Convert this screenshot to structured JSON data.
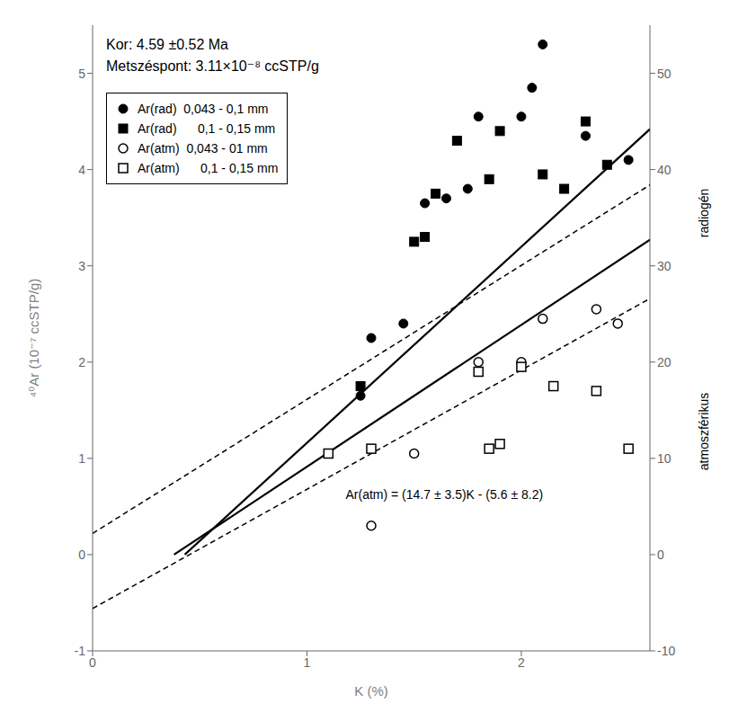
{
  "chart_data": {
    "type": "scatter",
    "xlabel": "K (%)",
    "ylabel": "⁴⁰Ar (10⁻⁷ ccSTP/g)",
    "xlim": [
      0,
      2.6
    ],
    "xticks": [
      0,
      1,
      2
    ],
    "ylim": [
      -1,
      5.5
    ],
    "yticks": [
      -1,
      0,
      1,
      2,
      3,
      4,
      5
    ],
    "y2lim": [
      -10,
      55
    ],
    "y2ticks": [
      -10,
      0,
      10,
      20,
      30,
      40,
      50
    ],
    "grid": false,
    "legend": "upper left",
    "annotations": [
      "Kor: 4.59 ±0.52 Ma\nMetszéspont: 3.11×10⁻⁸ ccSTP/g",
      "Ar(atm) = (14.7 ± 3.5)K - (5.6 ± 8.2)",
      "radiogén",
      "atmoszférikus"
    ],
    "series": [
      {
        "name": "Ar(rad)  0,043 - 0,1 mm",
        "type": "scatter",
        "marker": "circle",
        "color": "#000000",
        "x": [
          1.25,
          1.3,
          1.45,
          1.55,
          1.65,
          1.75,
          1.8,
          2.0,
          2.05,
          2.1,
          2.3,
          2.5
        ],
        "y": [
          1.65,
          2.25,
          2.4,
          3.65,
          3.7,
          3.8,
          4.55,
          4.55,
          4.85,
          5.3,
          4.35,
          4.1
        ]
      },
      {
        "name": "Ar(rad)      0,1 - 0,15 mm",
        "type": "scatter",
        "marker": "square",
        "color": "#000000",
        "x": [
          1.25,
          1.5,
          1.55,
          1.6,
          1.7,
          1.85,
          1.9,
          2.1,
          2.2,
          2.3,
          2.4
        ],
        "y": [
          1.75,
          3.25,
          3.3,
          3.75,
          4.3,
          3.9,
          4.4,
          3.95,
          3.8,
          4.5,
          4.05
        ]
      },
      {
        "name": "Ar(atm)  0,043 - 01 mm",
        "type": "scatter",
        "marker": "open_circle",
        "color": "#000000",
        "x": [
          1.3,
          1.5,
          1.8,
          2.0,
          2.1,
          2.35,
          2.45
        ],
        "y": [
          0.3,
          1.05,
          2.0,
          2.0,
          2.45,
          2.55,
          2.4
        ]
      },
      {
        "name": "Ar(atm)      0,1 - 0,15 mm",
        "type": "scatter",
        "marker": "open_square",
        "color": "#000000",
        "x": [
          1.1,
          1.3,
          1.8,
          1.85,
          1.9,
          2.0,
          2.15,
          2.35,
          2.5
        ],
        "y": [
          1.05,
          1.1,
          1.9,
          1.1,
          1.15,
          1.95,
          1.75,
          1.7,
          1.1
        ]
      },
      {
        "type": "line",
        "line_style": "solid",
        "color": "#000000",
        "x": [
          0.43,
          2.6
        ],
        "y": [
          0.0,
          4.42
        ]
      },
      {
        "type": "line",
        "line_style": "solid",
        "color": "#000000",
        "x": [
          0.38,
          2.6
        ],
        "y": [
          0.0,
          3.27
        ]
      },
      {
        "type": "line",
        "line_style": "dashed",
        "color": "#000000",
        "x": [
          0.0,
          2.6
        ],
        "y": [
          0.22,
          3.84
        ]
      },
      {
        "type": "line",
        "line_style": "dashed",
        "color": "#000000",
        "x": [
          0.0,
          2.6
        ],
        "y": [
          -0.56,
          2.66
        ]
      }
    ]
  }
}
